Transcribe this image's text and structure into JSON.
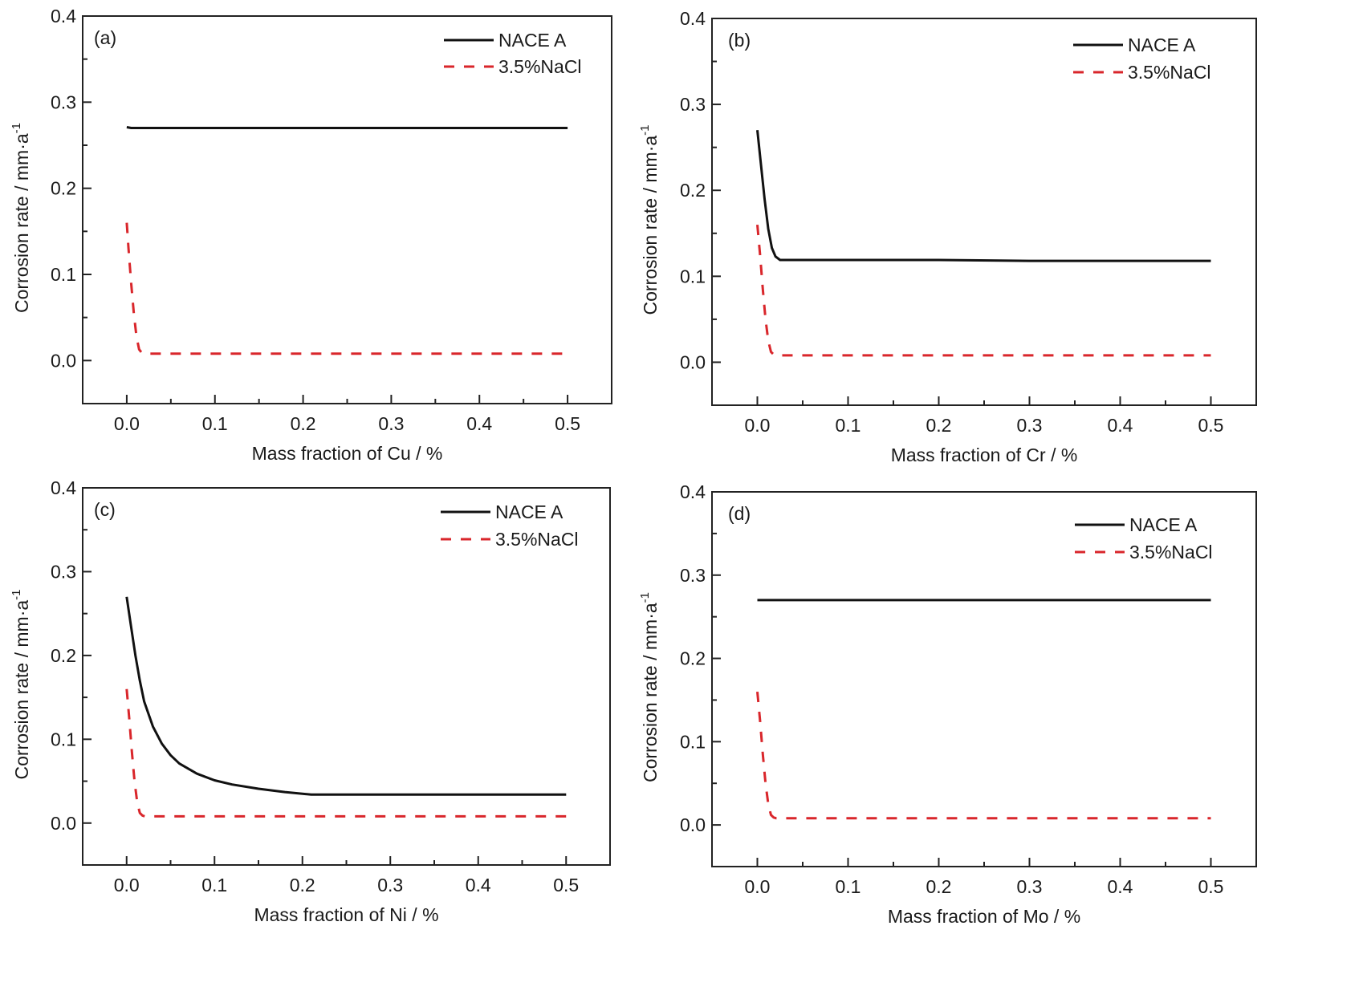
{
  "chart_data": [
    {
      "type": "line",
      "panel_label": "(a)",
      "title": "",
      "xlabel": "Mass fraction of Cu / %",
      "ylabel": "Corrosion rate / mm·a",
      "ylabel_superscript": "-1",
      "xlim": [
        -0.05,
        0.55
      ],
      "ylim": [
        -0.05,
        0.4
      ],
      "xticks": [
        0.0,
        0.1,
        0.2,
        0.3,
        0.4,
        0.5
      ],
      "xtick_labels": [
        "0.0",
        "0.1",
        "0.2",
        "0.3",
        "0.4",
        "0.5"
      ],
      "yticks": [
        0.0,
        0.1,
        0.2,
        0.3,
        0.4
      ],
      "ytick_labels": [
        "0.0",
        "0.1",
        "0.2",
        "0.3",
        "0.4"
      ],
      "grid": false,
      "legend_position": "top-right",
      "series": [
        {
          "name": "NACE A",
          "style": "solid",
          "color": "#111111",
          "x": [
            0.0,
            0.005,
            0.01,
            0.1,
            0.2,
            0.3,
            0.4,
            0.5
          ],
          "y": [
            0.271,
            0.27,
            0.27,
            0.27,
            0.27,
            0.27,
            0.27,
            0.27
          ]
        },
        {
          "name": "3.5%NaCl",
          "style": "dashed",
          "color": "#d9262b",
          "x": [
            0.0,
            0.002,
            0.005,
            0.008,
            0.011,
            0.014,
            0.017,
            0.02,
            0.1,
            0.2,
            0.3,
            0.4,
            0.5
          ],
          "y": [
            0.16,
            0.13,
            0.09,
            0.055,
            0.028,
            0.013,
            0.009,
            0.008,
            0.008,
            0.008,
            0.008,
            0.008,
            0.008
          ]
        }
      ]
    },
    {
      "type": "line",
      "panel_label": "(b)",
      "title": "",
      "xlabel": "Mass fraction of Cr / %",
      "ylabel": "Corrosion rate / mm·a",
      "ylabel_superscript": "-1",
      "xlim": [
        -0.05,
        0.55
      ],
      "ylim": [
        -0.05,
        0.4
      ],
      "xticks": [
        0.0,
        0.1,
        0.2,
        0.3,
        0.4,
        0.5
      ],
      "xtick_labels": [
        "0.0",
        "0.1",
        "0.2",
        "0.3",
        "0.4",
        "0.5"
      ],
      "yticks": [
        0.0,
        0.1,
        0.2,
        0.3,
        0.4
      ],
      "ytick_labels": [
        "0.0",
        "0.1",
        "0.2",
        "0.3",
        "0.4"
      ],
      "grid": false,
      "legend_position": "top-right",
      "series": [
        {
          "name": "NACE A",
          "style": "solid",
          "color": "#111111",
          "x": [
            0.0,
            0.004,
            0.008,
            0.012,
            0.016,
            0.02,
            0.025,
            0.03,
            0.1,
            0.2,
            0.3,
            0.4,
            0.5
          ],
          "y": [
            0.27,
            0.23,
            0.19,
            0.155,
            0.133,
            0.123,
            0.119,
            0.119,
            0.119,
            0.119,
            0.118,
            0.118,
            0.118
          ]
        },
        {
          "name": "3.5%NaCl",
          "style": "dashed",
          "color": "#d9262b",
          "x": [
            0.0,
            0.003,
            0.006,
            0.009,
            0.012,
            0.015,
            0.018,
            0.021,
            0.1,
            0.2,
            0.3,
            0.4,
            0.5
          ],
          "y": [
            0.16,
            0.125,
            0.085,
            0.05,
            0.025,
            0.012,
            0.009,
            0.008,
            0.008,
            0.008,
            0.008,
            0.008,
            0.008
          ]
        }
      ]
    },
    {
      "type": "line",
      "panel_label": "(c)",
      "title": "",
      "xlabel": "Mass fraction of Ni / %",
      "ylabel": "Corrosion rate / mm·a",
      "ylabel_superscript": "-1",
      "xlim": [
        -0.05,
        0.55
      ],
      "ylim": [
        -0.05,
        0.4
      ],
      "xticks": [
        0.0,
        0.1,
        0.2,
        0.3,
        0.4,
        0.5
      ],
      "xtick_labels": [
        "0.0",
        "0.1",
        "0.2",
        "0.3",
        "0.4",
        "0.5"
      ],
      "yticks": [
        0.0,
        0.1,
        0.2,
        0.3,
        0.4
      ],
      "ytick_labels": [
        "0.0",
        "0.1",
        "0.2",
        "0.3",
        "0.4"
      ],
      "grid": false,
      "legend_position": "top-right",
      "series": [
        {
          "name": "NACE A",
          "style": "solid",
          "color": "#111111",
          "x": [
            0.0,
            0.005,
            0.01,
            0.015,
            0.02,
            0.03,
            0.04,
            0.05,
            0.06,
            0.08,
            0.1,
            0.12,
            0.15,
            0.18,
            0.21,
            0.25,
            0.3,
            0.4,
            0.5
          ],
          "y": [
            0.27,
            0.235,
            0.2,
            0.17,
            0.145,
            0.115,
            0.095,
            0.081,
            0.071,
            0.059,
            0.051,
            0.046,
            0.041,
            0.037,
            0.034,
            0.034,
            0.034,
            0.034,
            0.034
          ]
        },
        {
          "name": "3.5%NaCl",
          "style": "dashed",
          "color": "#d9262b",
          "x": [
            0.0,
            0.003,
            0.006,
            0.009,
            0.012,
            0.015,
            0.018,
            0.021,
            0.1,
            0.2,
            0.3,
            0.4,
            0.5
          ],
          "y": [
            0.16,
            0.125,
            0.085,
            0.05,
            0.025,
            0.012,
            0.009,
            0.008,
            0.008,
            0.008,
            0.008,
            0.008,
            0.008
          ]
        }
      ]
    },
    {
      "type": "line",
      "panel_label": "(d)",
      "title": "",
      "xlabel": "Mass fraction of Mo / %",
      "ylabel": "Corrosion rate / mm·a",
      "ylabel_superscript": "-1",
      "xlim": [
        -0.05,
        0.55
      ],
      "ylim": [
        -0.05,
        0.4
      ],
      "xticks": [
        0.0,
        0.1,
        0.2,
        0.3,
        0.4,
        0.5
      ],
      "xtick_labels": [
        "0.0",
        "0.1",
        "0.2",
        "0.3",
        "0.4",
        "0.5"
      ],
      "yticks": [
        0.0,
        0.1,
        0.2,
        0.3,
        0.4
      ],
      "ytick_labels": [
        "0.0",
        "0.1",
        "0.2",
        "0.3",
        "0.4"
      ],
      "grid": false,
      "legend_position": "top-right",
      "series": [
        {
          "name": "NACE A",
          "style": "solid",
          "color": "#111111",
          "x": [
            0.0,
            0.1,
            0.2,
            0.3,
            0.4,
            0.5
          ],
          "y": [
            0.27,
            0.27,
            0.27,
            0.27,
            0.27,
            0.27
          ]
        },
        {
          "name": "3.5%NaCl",
          "style": "dashed",
          "color": "#d9262b",
          "x": [
            0.0,
            0.003,
            0.006,
            0.009,
            0.012,
            0.015,
            0.018,
            0.021,
            0.1,
            0.2,
            0.3,
            0.4,
            0.5
          ],
          "y": [
            0.16,
            0.125,
            0.085,
            0.05,
            0.025,
            0.012,
            0.009,
            0.008,
            0.008,
            0.008,
            0.008,
            0.008,
            0.008
          ]
        }
      ]
    }
  ]
}
